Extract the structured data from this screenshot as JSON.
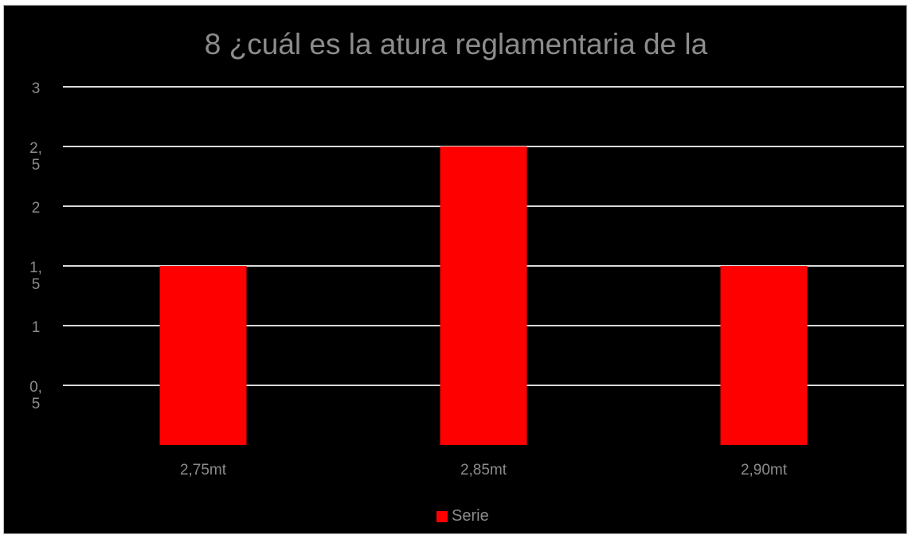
{
  "colors": {
    "background": "#000000",
    "bar": "#ff0000",
    "gridline": "#d9d9d9",
    "text": "#8c8c8c"
  },
  "chart_data": {
    "type": "bar",
    "title": "8 ¿cuál es la atura reglamentaria de la",
    "categories": [
      "2,75mt",
      "2,85mt",
      "2,90mt"
    ],
    "series": [
      {
        "name": "Serie",
        "values": [
          1.5,
          2.5,
          1.5
        ]
      }
    ],
    "ylim": [
      0,
      3
    ],
    "yticks": [
      {
        "value": 3,
        "label": [
          "3"
        ]
      },
      {
        "value": 2.5,
        "label": [
          "2,",
          "5"
        ]
      },
      {
        "value": 2,
        "label": [
          "2"
        ]
      },
      {
        "value": 1.5,
        "label": [
          "1,",
          "5"
        ]
      },
      {
        "value": 1,
        "label": [
          "1"
        ]
      },
      {
        "value": 0.5,
        "label": [
          "0,",
          "5"
        ]
      }
    ],
    "grid": true,
    "legend_position": "bottom"
  }
}
